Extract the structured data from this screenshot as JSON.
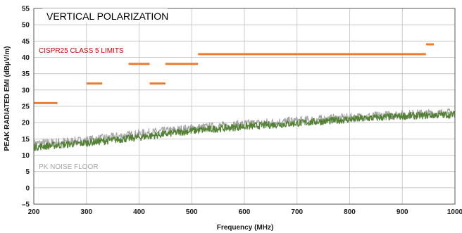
{
  "chart_data": {
    "type": "line",
    "title": "VERTICAL POLARIZATION",
    "xlabel": "Frequency (MHz)",
    "ylabel": "PEAK RADIATED EMI (dBµV/m)",
    "xlim": [
      200,
      1000
    ],
    "ylim": [
      -5,
      55
    ],
    "x_ticks": [
      200,
      300,
      400,
      500,
      600,
      700,
      800,
      900,
      1000
    ],
    "y_ticks": [
      -5,
      0,
      5,
      10,
      15,
      20,
      25,
      30,
      35,
      40,
      45,
      50,
      55
    ],
    "grid": true,
    "annotations": {
      "limits_label": "CISPR25 CLASS 5 LIMITS",
      "noise_label": "PK NOISE FLOOR"
    },
    "limits": {
      "name": "CISPR25 CLASS 5 LIMITS",
      "color": "#ed7d31",
      "segments": [
        {
          "x": [
            200,
            245
          ],
          "y": 26
        },
        {
          "x": [
            300,
            330
          ],
          "y": 32
        },
        {
          "x": [
            380,
            420
          ],
          "y": 38
        },
        {
          "x": [
            420,
            450
          ],
          "y": 32
        },
        {
          "x": [
            450,
            512
          ],
          "y": 38
        },
        {
          "x": [
            512,
            945
          ],
          "y": 41
        },
        {
          "x": [
            945,
            960
          ],
          "y": 44
        }
      ]
    },
    "series": [
      {
        "name": "PK NOISE FLOOR",
        "color": "#a6a6a6",
        "x": [
          200,
          300,
          400,
          500,
          600,
          700,
          800,
          900,
          1000
        ],
        "y": [
          13.5,
          14.5,
          16.5,
          18.2,
          19.5,
          20.5,
          21.5,
          22.5,
          23
        ]
      },
      {
        "name": "",
        "color": "#548235",
        "x": [
          200,
          300,
          400,
          500,
          600,
          700,
          800,
          900,
          1000
        ],
        "y": [
          12.5,
          13.8,
          15.5,
          17.5,
          18.8,
          19.8,
          21,
          22,
          22.5
        ]
      }
    ]
  }
}
